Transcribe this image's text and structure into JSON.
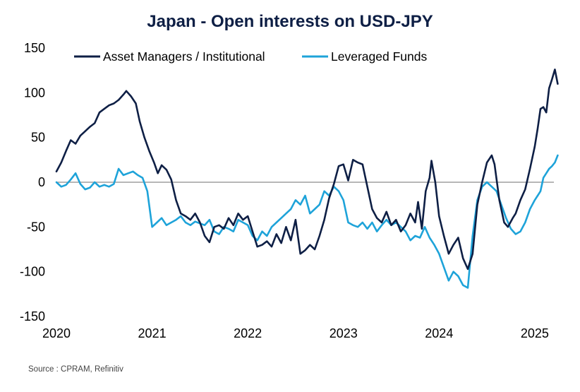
{
  "chart_data": {
    "type": "line",
    "title": "Japan - Open interests on USD-JPY",
    "source": "Source : CPRAM, Refinitiv",
    "xlabel": "",
    "ylabel": "",
    "ylim": [
      -150,
      150
    ],
    "xlim": [
      2020.0,
      2025.2
    ],
    "y_ticks": [
      150,
      100,
      50,
      0,
      -50,
      -100,
      -150
    ],
    "y_tick_labels": [
      "150",
      "100",
      "50",
      "0",
      "-50",
      "-100",
      "-150"
    ],
    "x_ticks": [
      2020,
      2021,
      2022,
      2023,
      2024,
      2025
    ],
    "x_tick_labels": [
      "2020",
      "2021",
      "2022",
      "2023",
      "2024",
      "2025"
    ],
    "zero_line": true,
    "grid": false,
    "legend": "top",
    "colors": {
      "asset_managers": "#0e1f45",
      "leveraged_funds": "#1ea3d9",
      "zero_line": "#8c8c8c"
    },
    "series": [
      {
        "name": "Asset Managers / Institutional",
        "color": "#0e1f45",
        "points": [
          [
            2020.0,
            12
          ],
          [
            2020.05,
            22
          ],
          [
            2020.1,
            35
          ],
          [
            2020.15,
            47
          ],
          [
            2020.2,
            43
          ],
          [
            2020.25,
            52
          ],
          [
            2020.3,
            57
          ],
          [
            2020.35,
            62
          ],
          [
            2020.4,
            66
          ],
          [
            2020.45,
            78
          ],
          [
            2020.5,
            82
          ],
          [
            2020.55,
            86
          ],
          [
            2020.6,
            88
          ],
          [
            2020.65,
            92
          ],
          [
            2020.7,
            98
          ],
          [
            2020.73,
            102
          ],
          [
            2020.78,
            96
          ],
          [
            2020.83,
            88
          ],
          [
            2020.87,
            68
          ],
          [
            2020.92,
            50
          ],
          [
            2020.97,
            35
          ],
          [
            2021.02,
            22
          ],
          [
            2021.06,
            10
          ],
          [
            2021.1,
            19
          ],
          [
            2021.15,
            14
          ],
          [
            2021.2,
            3
          ],
          [
            2021.25,
            -20
          ],
          [
            2021.3,
            -35
          ],
          [
            2021.35,
            -38
          ],
          [
            2021.4,
            -42
          ],
          [
            2021.45,
            -35
          ],
          [
            2021.5,
            -45
          ],
          [
            2021.55,
            -60
          ],
          [
            2021.6,
            -67
          ],
          [
            2021.65,
            -50
          ],
          [
            2021.7,
            -48
          ],
          [
            2021.75,
            -52
          ],
          [
            2021.8,
            -40
          ],
          [
            2021.85,
            -48
          ],
          [
            2021.9,
            -35
          ],
          [
            2021.95,
            -42
          ],
          [
            2022.0,
            -38
          ],
          [
            2022.05,
            -55
          ],
          [
            2022.1,
            -72
          ],
          [
            2022.15,
            -70
          ],
          [
            2022.2,
            -66
          ],
          [
            2022.25,
            -72
          ],
          [
            2022.3,
            -58
          ],
          [
            2022.35,
            -68
          ],
          [
            2022.4,
            -50
          ],
          [
            2022.45,
            -65
          ],
          [
            2022.5,
            -42
          ],
          [
            2022.55,
            -80
          ],
          [
            2022.6,
            -76
          ],
          [
            2022.65,
            -70
          ],
          [
            2022.7,
            -75
          ],
          [
            2022.75,
            -60
          ],
          [
            2022.8,
            -42
          ],
          [
            2022.85,
            -18
          ],
          [
            2022.9,
            -2
          ],
          [
            2022.95,
            18
          ],
          [
            2023.0,
            20
          ],
          [
            2023.05,
            2
          ],
          [
            2023.1,
            25
          ],
          [
            2023.15,
            22
          ],
          [
            2023.2,
            20
          ],
          [
            2023.25,
            -5
          ],
          [
            2023.3,
            -30
          ],
          [
            2023.35,
            -40
          ],
          [
            2023.4,
            -45
          ],
          [
            2023.45,
            -33
          ],
          [
            2023.5,
            -48
          ],
          [
            2023.55,
            -42
          ],
          [
            2023.6,
            -55
          ],
          [
            2023.65,
            -48
          ],
          [
            2023.7,
            -35
          ],
          [
            2023.75,
            -45
          ],
          [
            2023.78,
            -22
          ],
          [
            2023.82,
            -52
          ],
          [
            2023.86,
            -10
          ],
          [
            2023.9,
            5
          ],
          [
            2023.92,
            24
          ],
          [
            2023.96,
            0
          ],
          [
            2024.0,
            -38
          ],
          [
            2024.05,
            -60
          ],
          [
            2024.1,
            -80
          ],
          [
            2024.15,
            -70
          ],
          [
            2024.2,
            -62
          ],
          [
            2024.25,
            -85
          ],
          [
            2024.3,
            -97
          ],
          [
            2024.35,
            -80
          ],
          [
            2024.4,
            -25
          ],
          [
            2024.45,
            0
          ],
          [
            2024.5,
            22
          ],
          [
            2024.55,
            30
          ],
          [
            2024.58,
            20
          ],
          [
            2024.63,
            -20
          ],
          [
            2024.68,
            -45
          ],
          [
            2024.72,
            -50
          ],
          [
            2024.77,
            -40
          ],
          [
            2024.8,
            -35
          ],
          [
            2024.85,
            -20
          ],
          [
            2024.9,
            -8
          ],
          [
            2024.95,
            15
          ],
          [
            2025.0,
            40
          ],
          [
            2025.03,
            60
          ],
          [
            2025.06,
            82
          ],
          [
            2025.09,
            84
          ],
          [
            2025.12,
            78
          ],
          [
            2025.15,
            105
          ],
          [
            2025.18,
            115
          ],
          [
            2025.21,
            126
          ],
          [
            2025.24,
            110
          ]
        ]
      },
      {
        "name": "Leveraged Funds",
        "color": "#1ea3d9",
        "points": [
          [
            2020.0,
            0
          ],
          [
            2020.05,
            -5
          ],
          [
            2020.1,
            -3
          ],
          [
            2020.15,
            3
          ],
          [
            2020.2,
            10
          ],
          [
            2020.25,
            -2
          ],
          [
            2020.3,
            -8
          ],
          [
            2020.35,
            -6
          ],
          [
            2020.4,
            0
          ],
          [
            2020.45,
            -5
          ],
          [
            2020.5,
            -3
          ],
          [
            2020.55,
            -5
          ],
          [
            2020.6,
            -2
          ],
          [
            2020.65,
            15
          ],
          [
            2020.7,
            8
          ],
          [
            2020.75,
            10
          ],
          [
            2020.8,
            12
          ],
          [
            2020.85,
            8
          ],
          [
            2020.9,
            5
          ],
          [
            2020.95,
            -10
          ],
          [
            2021.0,
            -50
          ],
          [
            2021.05,
            -45
          ],
          [
            2021.1,
            -40
          ],
          [
            2021.15,
            -48
          ],
          [
            2021.2,
            -45
          ],
          [
            2021.25,
            -42
          ],
          [
            2021.3,
            -38
          ],
          [
            2021.35,
            -45
          ],
          [
            2021.4,
            -48
          ],
          [
            2021.45,
            -44
          ],
          [
            2021.5,
            -46
          ],
          [
            2021.55,
            -48
          ],
          [
            2021.6,
            -42
          ],
          [
            2021.65,
            -55
          ],
          [
            2021.7,
            -58
          ],
          [
            2021.75,
            -50
          ],
          [
            2021.8,
            -52
          ],
          [
            2021.85,
            -55
          ],
          [
            2021.9,
            -42
          ],
          [
            2021.95,
            -45
          ],
          [
            2022.0,
            -48
          ],
          [
            2022.05,
            -60
          ],
          [
            2022.1,
            -65
          ],
          [
            2022.15,
            -55
          ],
          [
            2022.2,
            -60
          ],
          [
            2022.25,
            -50
          ],
          [
            2022.3,
            -45
          ],
          [
            2022.35,
            -40
          ],
          [
            2022.4,
            -35
          ],
          [
            2022.45,
            -30
          ],
          [
            2022.5,
            -20
          ],
          [
            2022.55,
            -25
          ],
          [
            2022.6,
            -15
          ],
          [
            2022.65,
            -35
          ],
          [
            2022.7,
            -30
          ],
          [
            2022.75,
            -25
          ],
          [
            2022.8,
            -10
          ],
          [
            2022.85,
            -15
          ],
          [
            2022.9,
            -5
          ],
          [
            2022.95,
            -10
          ],
          [
            2023.0,
            -20
          ],
          [
            2023.05,
            -45
          ],
          [
            2023.1,
            -48
          ],
          [
            2023.15,
            -50
          ],
          [
            2023.2,
            -45
          ],
          [
            2023.25,
            -52
          ],
          [
            2023.3,
            -45
          ],
          [
            2023.35,
            -55
          ],
          [
            2023.4,
            -48
          ],
          [
            2023.45,
            -42
          ],
          [
            2023.5,
            -48
          ],
          [
            2023.55,
            -45
          ],
          [
            2023.6,
            -50
          ],
          [
            2023.65,
            -55
          ],
          [
            2023.7,
            -65
          ],
          [
            2023.75,
            -60
          ],
          [
            2023.8,
            -62
          ],
          [
            2023.85,
            -50
          ],
          [
            2023.9,
            -62
          ],
          [
            2023.95,
            -70
          ],
          [
            2024.0,
            -80
          ],
          [
            2024.05,
            -95
          ],
          [
            2024.1,
            -110
          ],
          [
            2024.15,
            -100
          ],
          [
            2024.2,
            -105
          ],
          [
            2024.25,
            -115
          ],
          [
            2024.3,
            -118
          ],
          [
            2024.35,
            -60
          ],
          [
            2024.4,
            -20
          ],
          [
            2024.45,
            -5
          ],
          [
            2024.5,
            0
          ],
          [
            2024.55,
            -5
          ],
          [
            2024.6,
            -10
          ],
          [
            2024.65,
            -25
          ],
          [
            2024.7,
            -40
          ],
          [
            2024.75,
            -52
          ],
          [
            2024.8,
            -58
          ],
          [
            2024.85,
            -55
          ],
          [
            2024.9,
            -45
          ],
          [
            2024.95,
            -30
          ],
          [
            2025.0,
            -20
          ],
          [
            2025.03,
            -15
          ],
          [
            2025.06,
            -10
          ],
          [
            2025.09,
            5
          ],
          [
            2025.12,
            10
          ],
          [
            2025.15,
            15
          ],
          [
            2025.18,
            18
          ],
          [
            2025.21,
            22
          ],
          [
            2025.24,
            30
          ]
        ]
      }
    ]
  }
}
